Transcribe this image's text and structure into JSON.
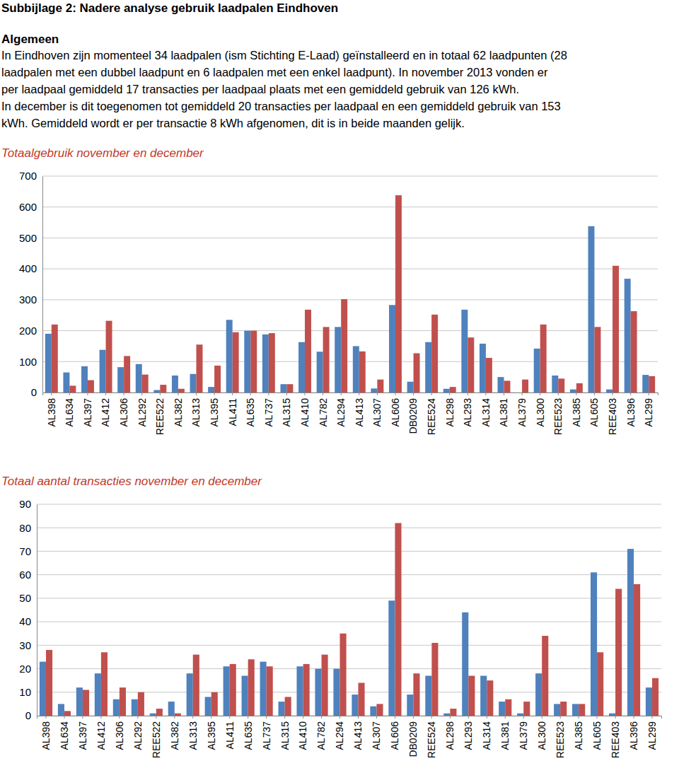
{
  "header": {
    "title": "Subbijlage 2: Nadere analyse gebruik laadpalen Eindhoven",
    "section": "Algemeen",
    "paragraph": [
      "In Eindhoven zijn momenteel 34 laadpalen (ism Stichting E-Laad) geïnstalleerd en in totaal 62 laadpunten (28",
      "laadpalen met een dubbel laadpunt en 6 laadpalen met een enkel laadpunt). In november 2013 vonden er",
      "per laadpaal gemiddeld 17 transacties per laadpaal plaats met een gemiddeld gebruik van 126 kWh.",
      "In december is dit toegenomen tot gemiddeld 20 transacties per laadpaal en een gemiddeld gebruik van 153",
      "kWh. Gemiddeld wordt er per transactie 8 kWh afgenomen, dit is in beide maanden gelijk."
    ]
  },
  "chart_data": [
    {
      "type": "bar",
      "title": "Totaalgebruik november en december",
      "categories": [
        "AL398",
        "AL634",
        "AL397",
        "AL412",
        "AL306",
        "AL292",
        "REE522",
        "AL382",
        "AL313",
        "AL395",
        "AL411",
        "AL635",
        "AL737",
        "AL315",
        "AL410",
        "AL782",
        "AL294",
        "AL413",
        "AL307",
        "AL606",
        "DB0209",
        "REE524",
        "AL298",
        "AL293",
        "AL314",
        "AL381",
        "AL379",
        "AL300",
        "REE523",
        "AL385",
        "AL605",
        "REE403",
        "AL396",
        "AL299"
      ],
      "series": [
        {
          "color": "#4f81bd",
          "values": [
            190,
            65,
            85,
            138,
            82,
            92,
            8,
            55,
            60,
            18,
            235,
            200,
            188,
            27,
            163,
            132,
            212,
            150,
            13,
            283,
            35,
            163,
            12,
            268,
            158,
            50,
            0,
            142,
            55,
            10,
            538,
            10,
            368,
            57
          ]
        },
        {
          "color": "#c0504d",
          "values": [
            220,
            22,
            40,
            232,
            118,
            58,
            25,
            12,
            155,
            87,
            195,
            200,
            192,
            27,
            268,
            212,
            302,
            133,
            42,
            638,
            127,
            252,
            18,
            178,
            112,
            38,
            42,
            220,
            45,
            30,
            212,
            410,
            263,
            53
          ]
        }
      ],
      "ylim": [
        0,
        700
      ],
      "yticks": [
        0,
        100,
        200,
        300,
        400,
        500,
        600,
        700
      ],
      "grid": true
    },
    {
      "type": "bar",
      "title": "Totaal aantal transacties november en december",
      "categories": [
        "AL398",
        "AL634",
        "AL397",
        "AL412",
        "AL306",
        "AL292",
        "REE522",
        "AL382",
        "AL313",
        "AL395",
        "AL411",
        "AL635",
        "AL737",
        "AL315",
        "AL410",
        "AL782",
        "AL294",
        "AL413",
        "AL307",
        "AL606",
        "DB0209",
        "REE524",
        "AL298",
        "AL293",
        "AL314",
        "AL381",
        "AL379",
        "AL300",
        "REE523",
        "AL385",
        "AL605",
        "REE403",
        "AL396",
        "AL299"
      ],
      "series": [
        {
          "color": "#4f81bd",
          "values": [
            23,
            5,
            12,
            18,
            7,
            7,
            1,
            6,
            18,
            8,
            21,
            17,
            23,
            6,
            21,
            20,
            20,
            9,
            4,
            49,
            9,
            17,
            1,
            44,
            17,
            6,
            1,
            18,
            5,
            5,
            61,
            1,
            71,
            12
          ]
        },
        {
          "color": "#c0504d",
          "values": [
            28,
            2,
            11,
            27,
            12,
            10,
            3,
            1,
            26,
            10,
            22,
            24,
            21,
            8,
            22,
            26,
            35,
            14,
            5,
            82,
            18,
            31,
            3,
            17,
            15,
            7,
            6,
            34,
            6,
            5,
            27,
            54,
            56,
            16
          ]
        }
      ],
      "ylim": [
        0,
        90
      ],
      "yticks": [
        0,
        10,
        20,
        30,
        40,
        50,
        60,
        70,
        80,
        90
      ],
      "grid": true
    }
  ]
}
